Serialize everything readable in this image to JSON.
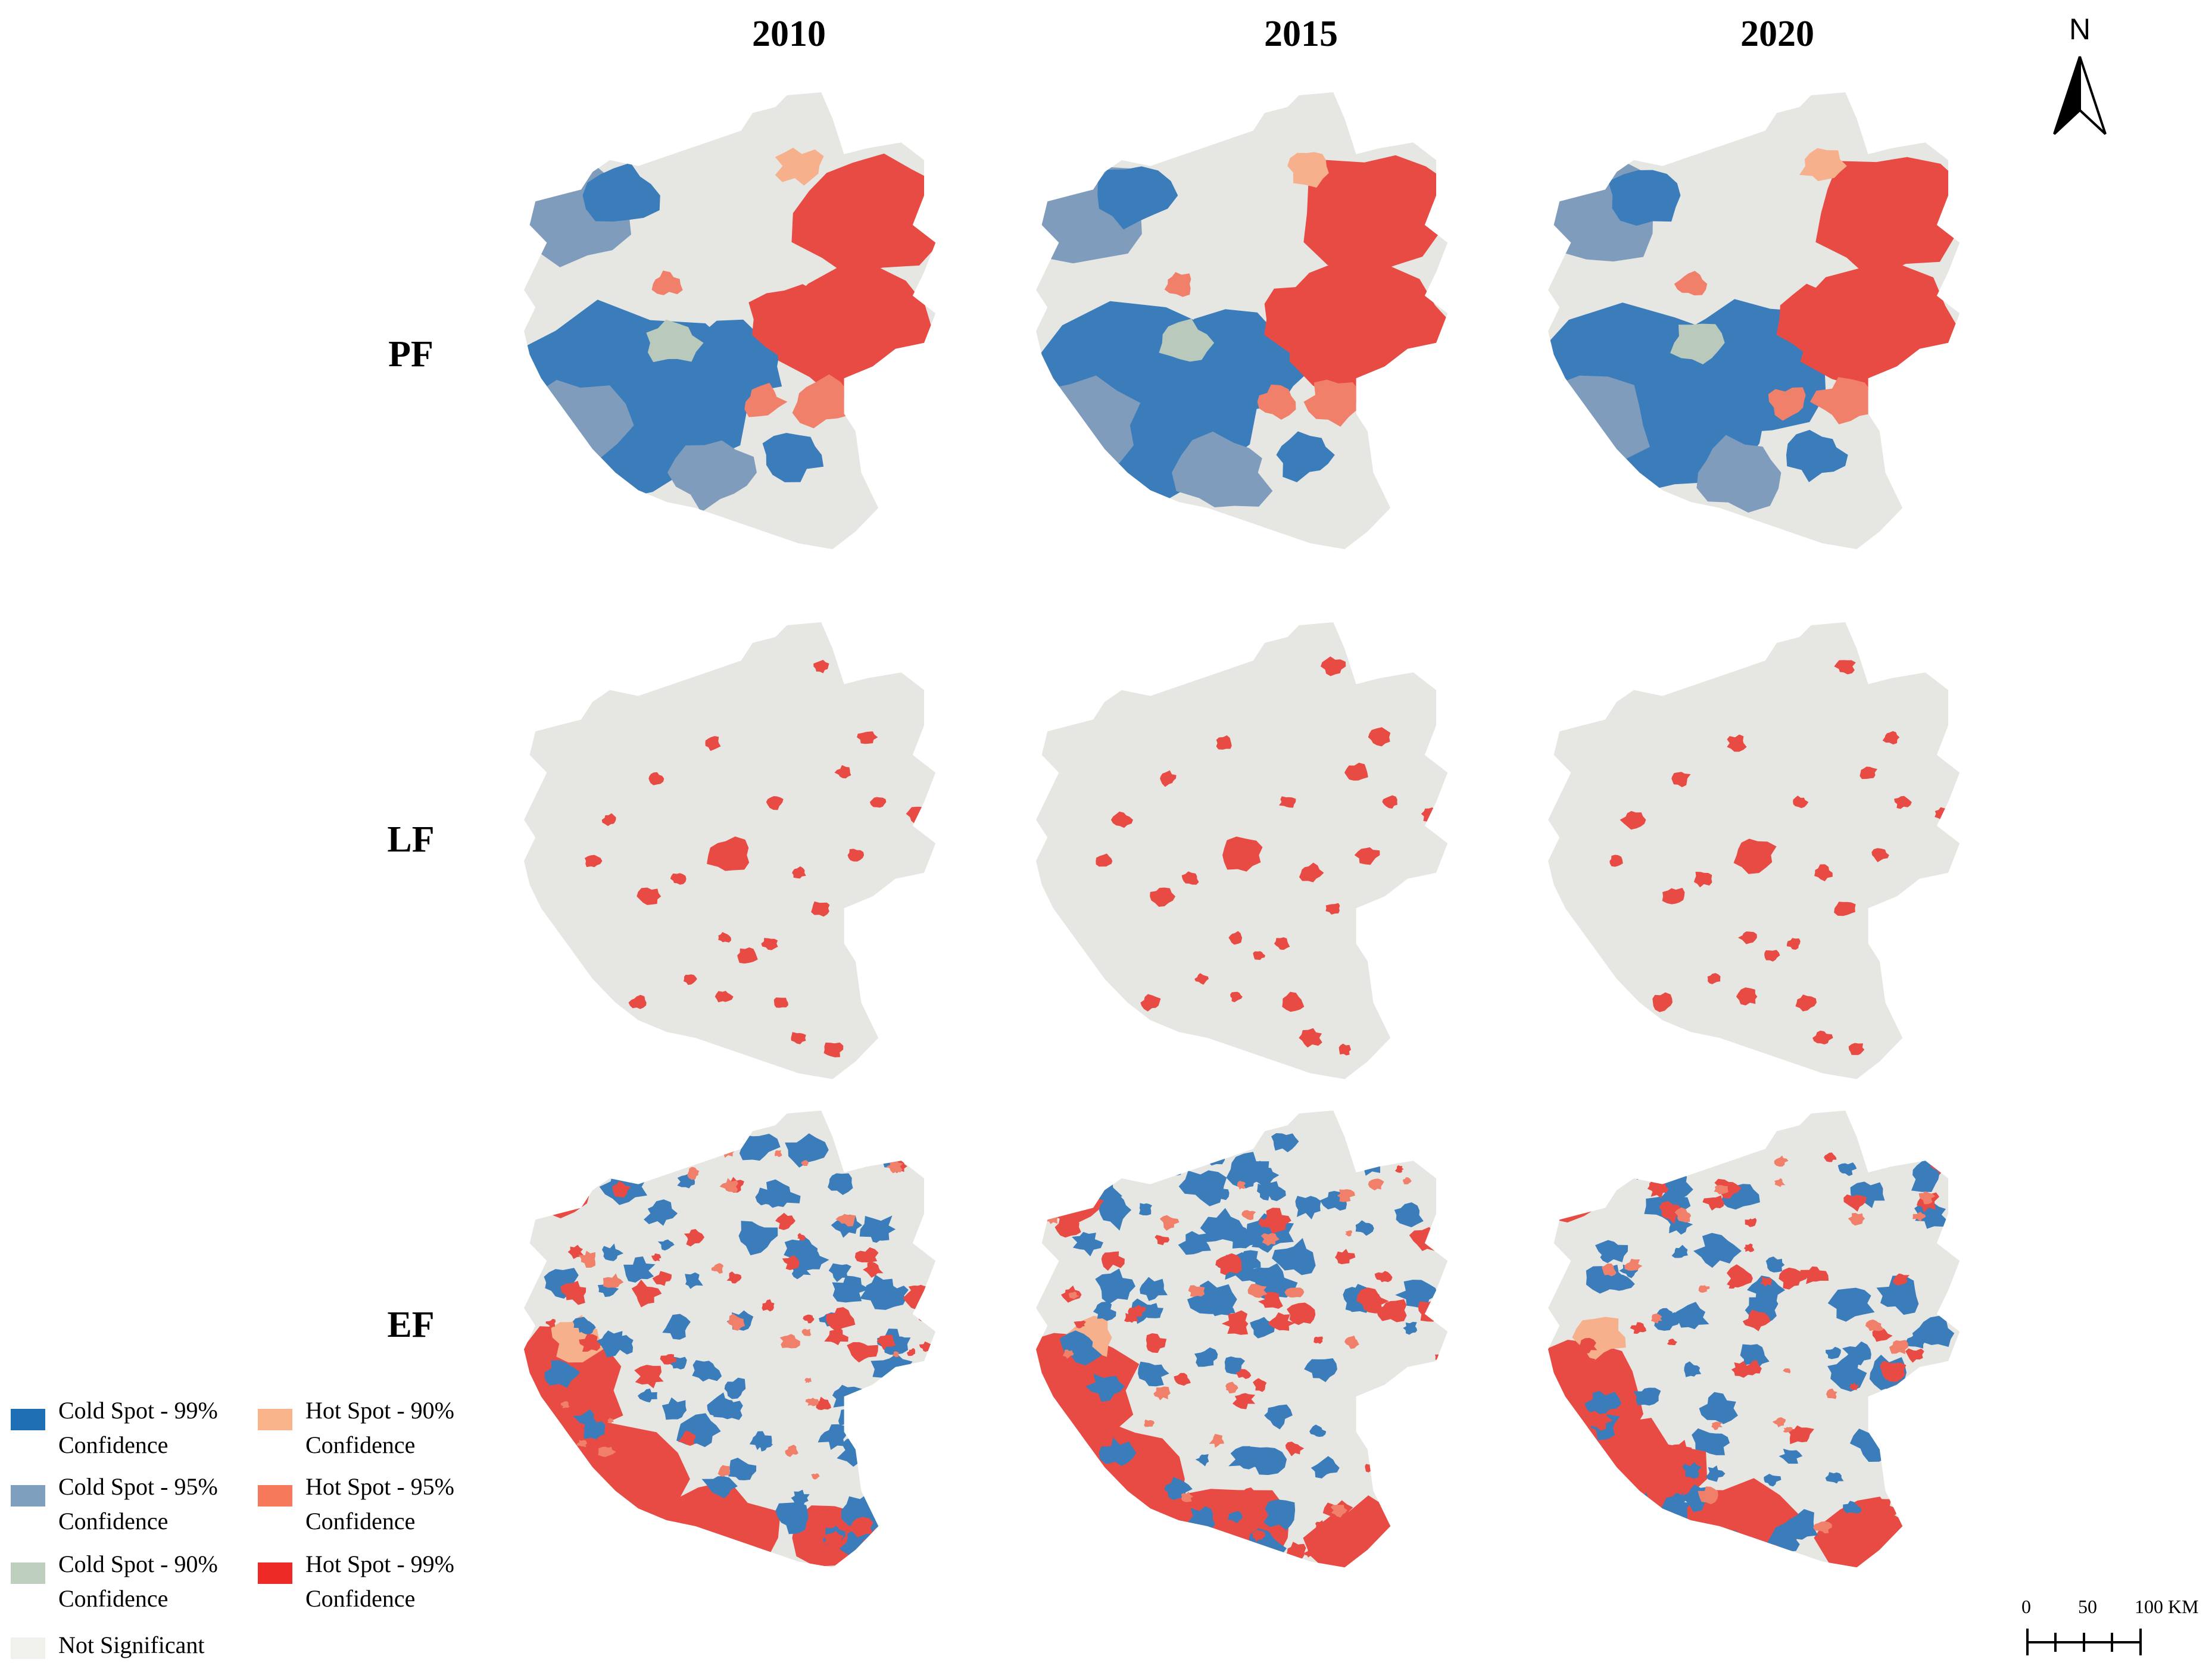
{
  "columns": [
    "2010",
    "2015",
    "2020"
  ],
  "rows": [
    "PF",
    "LF",
    "EF"
  ],
  "north_label": "N",
  "legend": {
    "items": [
      {
        "line1": "Cold Spot - 99%",
        "line2": "Confidence",
        "color": "#1f6fb4"
      },
      {
        "line1": "Cold Spot - 95%",
        "line2": "Confidence",
        "color": "#7f9fbf"
      },
      {
        "line1": "Cold Spot - 90%",
        "line2": "Confidence",
        "color": "#bfcfbf"
      },
      {
        "line1": "Hot Spot - 90%",
        "line2": "Confidence",
        "color": "#f9b48a"
      },
      {
        "line1": "Hot Spot - 95%",
        "line2": "Confidence",
        "color": "#f5795a"
      },
      {
        "line1": "Hot Spot - 99%",
        "line2": "Confidence",
        "color": "#ee2a27"
      }
    ],
    "not_significant": {
      "label": "Not Significant",
      "color": "#f1f1ec"
    }
  },
  "scale_bar": {
    "ticks": [
      "0",
      "50",
      "100 KM"
    ]
  },
  "map_colors": {
    "background": "#e6e6e3",
    "cold99": "#3b7dbb",
    "cold95": "#7f9cbc",
    "cold90": "#b9c9bb",
    "hot90": "#f6b08c",
    "hot95": "#f0806a",
    "hot99": "#e84b43"
  }
}
